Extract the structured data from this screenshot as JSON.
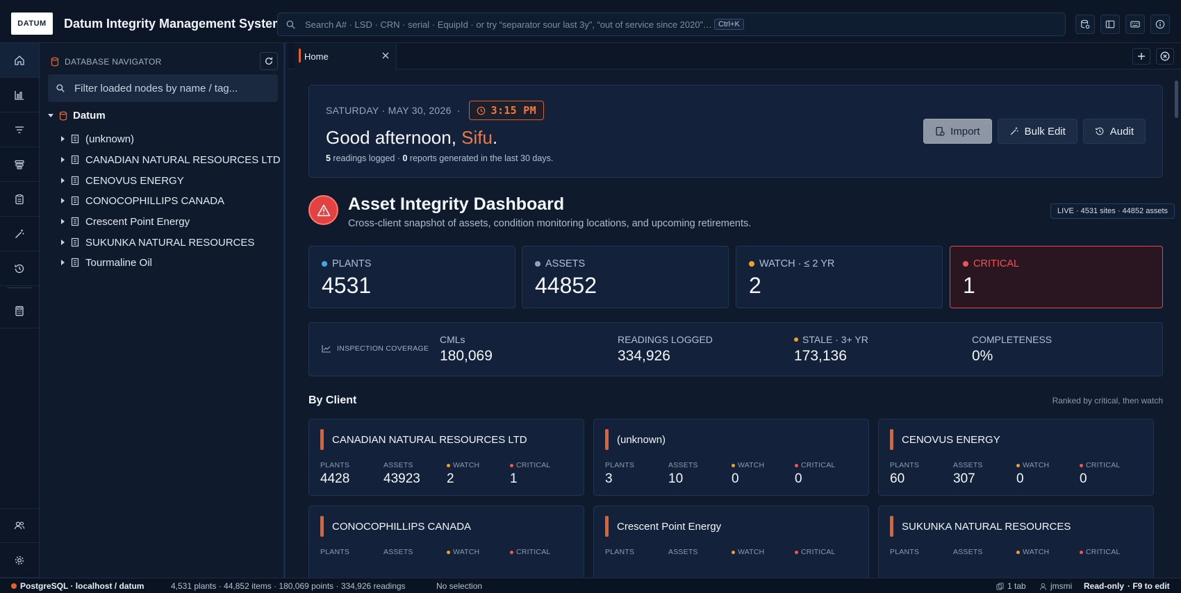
{
  "app": {
    "logo_text": "DATUM",
    "title": "Datum Integrity Management System"
  },
  "search": {
    "placeholder": "Search A# · LSD · CRN · serial · EquipId · or try “separator sour last 3y”, “out of service since 2020”…",
    "shortcut": "Ctrl+K"
  },
  "icons": {
    "top_actions": [
      "database-settings-icon",
      "sidebar-toggle-icon",
      "keyboard-icon",
      "info-icon"
    ],
    "rail": [
      "home-icon",
      "chart-icon",
      "filter-icon",
      "layers-icon",
      "clipboard-icon",
      "wand-icon",
      "history-icon",
      "calculator-icon",
      "users-icon",
      "gear-icon"
    ]
  },
  "navigator": {
    "header": "DATABASE NAVIGATOR",
    "filter_placeholder": "Filter loaded nodes by name / tag...",
    "root": "Datum",
    "items": [
      "(unknown)",
      "CANADIAN NATURAL RESOURCES LTD",
      "CENOVUS ENERGY",
      "CONOCOPHILLIPS CANADA",
      "Crescent Point Energy",
      "SUKUNKA NATURAL RESOURCES",
      "Tourmaline Oil"
    ]
  },
  "tabs": [
    {
      "label": "Home"
    }
  ],
  "greeting": {
    "date": "SATURDAY · MAY 30, 2026",
    "separator": "·",
    "time": "3:15 PM",
    "prefix": "Good afternoon, ",
    "name": "Sifu",
    "suffix": ".",
    "readings": "5",
    "readings_label": " readings logged · ",
    "reports": "0",
    "reports_label": " reports generated in the last 30 days.",
    "buttons": {
      "import": "Import",
      "bulk_edit": "Bulk Edit",
      "audit": "Audit"
    }
  },
  "dashboard": {
    "title": "Asset Integrity Dashboard",
    "subtitle": "Cross-client snapshot of assets, condition monitoring locations, and upcoming retirements.",
    "live_badge": "LIVE ·  4531 sites ·  44852 assets"
  },
  "stats": [
    {
      "label": "PLANTS",
      "value": "4531",
      "color": "#3fa9e8"
    },
    {
      "label": "ASSETS",
      "value": "44852",
      "color": "#9aa3b2"
    },
    {
      "label": "WATCH · ≤ 2 YR",
      "value": "2",
      "color": "#f0a02a"
    },
    {
      "label": "CRITICAL",
      "value": "1",
      "color": "#f05454"
    }
  ],
  "coverage": {
    "label": "INSPECTION COVERAGE",
    "cmls_label": "CMLs",
    "cmls": "180,069",
    "readings_label": "READINGS LOGGED",
    "readings": "334,926",
    "stale_label": "STALE · 3+ YR",
    "stale": "173,136",
    "completeness_label": "COMPLETENESS",
    "completeness": "0%"
  },
  "by_client": {
    "title": "By Client",
    "note": "Ranked by critical, then watch",
    "labels": {
      "plants": "PLANTS",
      "assets": "ASSETS",
      "watch": "WATCH",
      "critical": "CRITICAL"
    },
    "cards": [
      {
        "name": "CANADIAN NATURAL RESOURCES LTD",
        "plants": "4428",
        "assets": "43923",
        "watch": "2",
        "critical": "1"
      },
      {
        "name": "(unknown)",
        "plants": "3",
        "assets": "10",
        "watch": "0",
        "critical": "0"
      },
      {
        "name": "CENOVUS ENERGY",
        "plants": "60",
        "assets": "307",
        "watch": "0",
        "critical": "0"
      },
      {
        "name": "CONOCOPHILLIPS CANADA"
      },
      {
        "name": "Crescent Point Energy"
      },
      {
        "name": "SUKUNKA NATURAL RESOURCES"
      }
    ]
  },
  "status": {
    "db": "PostgreSQL · localhost / datum",
    "counts": "4,531 plants  ·  44,852 items  ·  180,069 points  ·  334,926 readings",
    "selection": "No selection",
    "tabs": "1 tab",
    "user": "jmsmi",
    "mode": "Read-only",
    "edit_hint": "·  F9 to edit"
  }
}
